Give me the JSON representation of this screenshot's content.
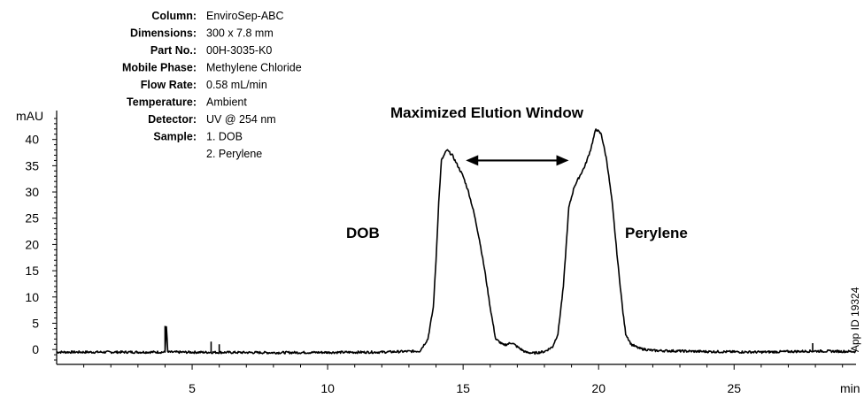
{
  "chart_data": {
    "type": "line",
    "ylabel": "mAU",
    "xlabel": "min",
    "xlim": [
      0,
      29.5
    ],
    "ylim": [
      -2.5,
      45
    ],
    "x_ticks": [
      5,
      10,
      15,
      20,
      25
    ],
    "y_ticks": [
      0,
      5,
      10,
      15,
      20,
      25,
      30,
      35,
      40
    ],
    "grid": false,
    "series": [
      {
        "x": [
          0,
          4,
          4.05,
          4.1,
          8,
          12,
          13.4,
          13.7,
          13.9,
          14.0,
          14.1,
          14.2,
          14.4,
          14.6,
          14.8,
          15.0,
          15.2,
          15.4,
          15.6,
          15.8,
          16.0,
          16.2,
          16.5,
          16.8,
          17.0,
          17.3,
          17.6,
          18.0,
          18.3,
          18.5,
          18.7,
          18.9,
          19.1,
          19.3,
          19.5,
          19.7,
          19.9,
          20.1,
          20.3,
          20.5,
          20.7,
          20.9,
          21.0,
          21.2,
          21.5,
          22,
          24,
          26,
          28,
          29.5
        ],
        "y": [
          -0.5,
          -0.5,
          4.5,
          -0.5,
          -0.6,
          -0.5,
          -0.3,
          2,
          8,
          17,
          28,
          36,
          38,
          37,
          35,
          33,
          30,
          26,
          21,
          15,
          8,
          2,
          0.8,
          1.3,
          0.5,
          -0.5,
          -0.7,
          -0.4,
          0.5,
          3,
          12,
          27,
          31,
          33,
          35,
          38,
          42,
          41,
          36,
          28,
          17,
          7,
          3,
          1,
          0.2,
          -0.2,
          -0.4,
          -0.5,
          -0.3,
          -0.4
        ]
      }
    ],
    "annotations": [
      {
        "text": "Maximized Elution Window",
        "arrow": [
          15.1,
          18.9
        ],
        "arrow_y": 36
      },
      {
        "text": "DOB"
      },
      {
        "text": "Perylene"
      }
    ]
  },
  "info": [
    {
      "key": "Column:",
      "value": "EnviroSep-ABC"
    },
    {
      "key": "Dimensions:",
      "value": "300 x 7.8 mm"
    },
    {
      "key": "Part No.:",
      "value": "00H-3035-K0"
    },
    {
      "key": "Mobile Phase:",
      "value": "Methylene Chloride"
    },
    {
      "key": "Flow Rate:",
      "value": "0.58 mL/min"
    },
    {
      "key": "Temperature:",
      "value": "Ambient"
    },
    {
      "key": "Detector:",
      "value": "UV @ 254 nm"
    },
    {
      "key": "Sample:",
      "value": "1. DOB"
    },
    {
      "key": "",
      "value": "2. Perylene"
    }
  ],
  "app_id": "App ID 19324"
}
